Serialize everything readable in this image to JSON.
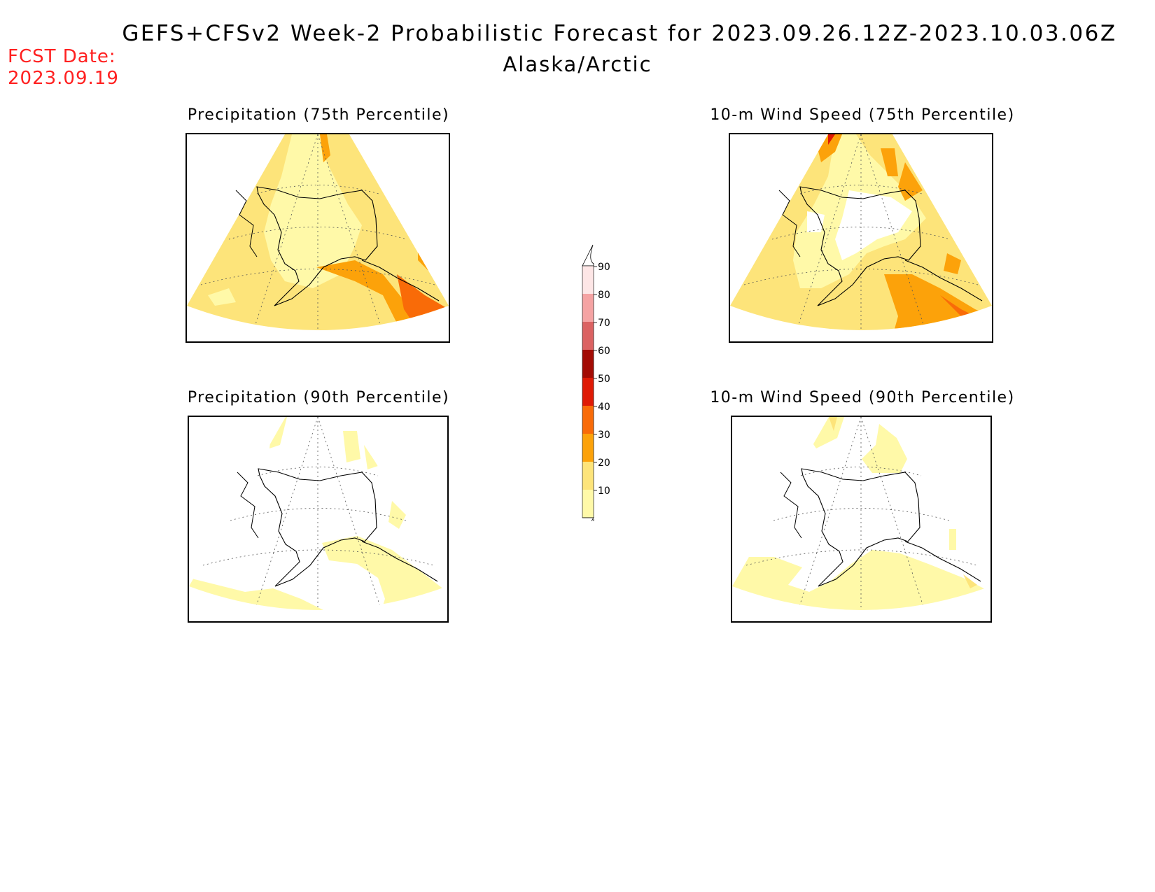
{
  "header": {
    "title": "GEFS+CFSv2 Week-2 Probabilistic Forecast for 2023.09.26.12Z-2023.10.03.06Z",
    "subtitle": "Alaska/Arctic",
    "fcst_label": "FCST Date:",
    "fcst_date": "2023.09.19"
  },
  "panels": [
    {
      "title": "Precipitation (75th Percentile)"
    },
    {
      "title": "10-m Wind Speed (75th Percentile)"
    },
    {
      "title": "Precipitation (90th Percentile)"
    },
    {
      "title": "10-m Wind Speed (90th Percentile)"
    }
  ],
  "colorbar": {
    "levels": [
      "90",
      "80",
      "70",
      "60",
      "50",
      "40",
      "30",
      "20",
      "10"
    ],
    "colors": {
      "10": "#fff9a8",
      "20": "#fde47a",
      "30": "#fca20a",
      "40": "#f96b08",
      "50": "#df1a05",
      "60": "#a30b04",
      "70": "#db6262",
      "80": "#f5a3a3",
      "90": "#fde6e6"
    }
  }
}
